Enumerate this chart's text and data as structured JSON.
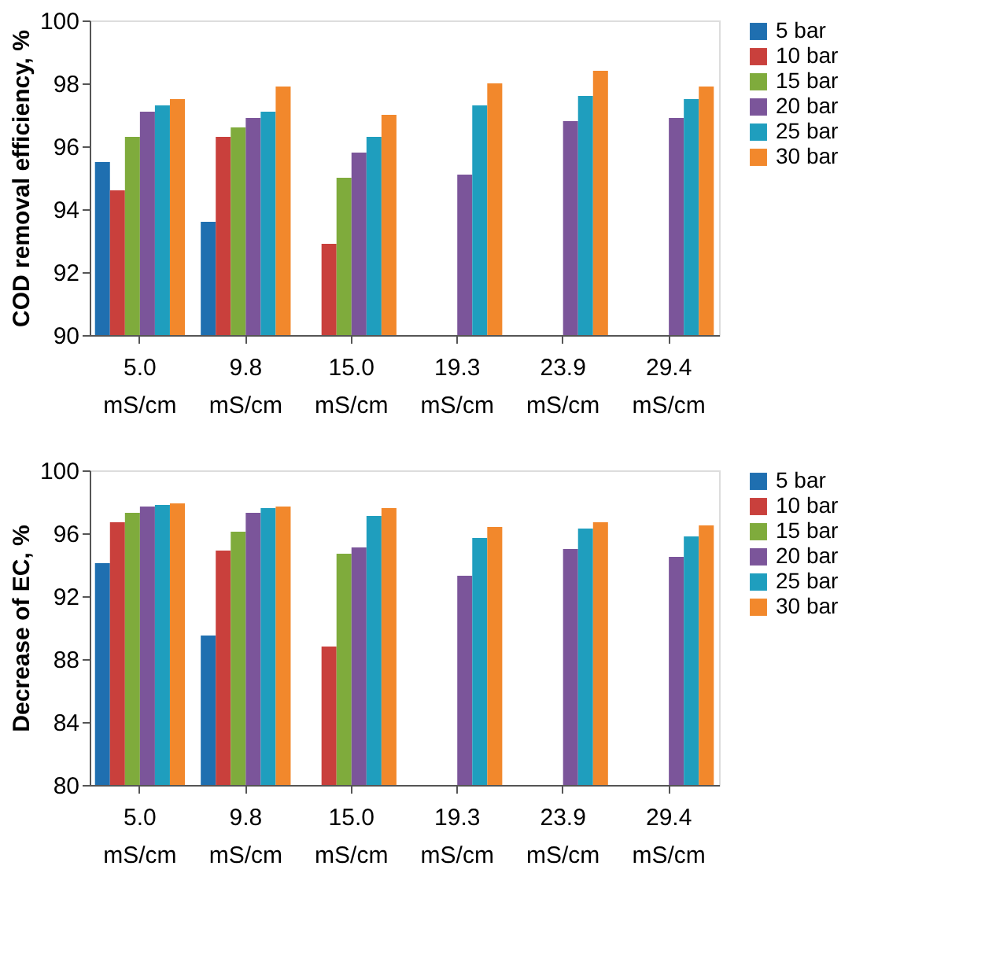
{
  "chart_data": [
    {
      "type": "bar",
      "ylabel": "COD removal efficiency, %",
      "categories": [
        "5.0 mS/cm",
        "9.8 mS/cm",
        "15.0 mS/cm",
        "19.3 mS/cm",
        "23.9 mS/cm",
        "29.4 mS/cm"
      ],
      "ylim": [
        90,
        100
      ],
      "yticks": [
        90,
        92,
        94,
        96,
        98,
        100
      ],
      "grid": false,
      "legend": "right",
      "series": [
        {
          "name": "5 bar",
          "color": "#1f6fb0",
          "values": [
            95.5,
            93.6,
            null,
            null,
            null,
            null
          ]
        },
        {
          "name": "10 bar",
          "color": "#c9403c",
          "values": [
            94.6,
            96.3,
            92.9,
            null,
            null,
            null
          ]
        },
        {
          "name": "15 bar",
          "color": "#7fab3c",
          "values": [
            96.3,
            96.6,
            95.0,
            null,
            null,
            null
          ]
        },
        {
          "name": "20 bar",
          "color": "#7b559a",
          "values": [
            97.1,
            96.9,
            95.8,
            95.1,
            96.8,
            96.9
          ]
        },
        {
          "name": "25 bar",
          "color": "#1f9ebe",
          "values": [
            97.3,
            97.1,
            96.3,
            97.3,
            97.6,
            97.5
          ]
        },
        {
          "name": "30 bar",
          "color": "#f2882c",
          "values": [
            97.5,
            97.9,
            97.0,
            98.0,
            98.4,
            97.9
          ]
        }
      ]
    },
    {
      "type": "bar",
      "ylabel": "Decrease of EC, %",
      "categories": [
        "5.0 mS/cm",
        "9.8 mS/cm",
        "15.0 mS/cm",
        "19.3 mS/cm",
        "23.9 mS/cm",
        "29.4 mS/cm"
      ],
      "ylim": [
        80,
        100
      ],
      "yticks": [
        80,
        84,
        88,
        92,
        96,
        100
      ],
      "grid": false,
      "legend": "right",
      "series": [
        {
          "name": "5 bar",
          "color": "#1f6fb0",
          "values": [
            94.1,
            89.5,
            null,
            null,
            null,
            null
          ]
        },
        {
          "name": "10 bar",
          "color": "#c9403c",
          "values": [
            96.7,
            94.9,
            88.8,
            null,
            null,
            null
          ]
        },
        {
          "name": "15 bar",
          "color": "#7fab3c",
          "values": [
            97.3,
            96.1,
            94.7,
            null,
            null,
            null
          ]
        },
        {
          "name": "20 bar",
          "color": "#7b559a",
          "values": [
            97.7,
            97.3,
            95.1,
            93.3,
            95.0,
            94.5
          ]
        },
        {
          "name": "25 bar",
          "color": "#1f9ebe",
          "values": [
            97.8,
            97.6,
            97.1,
            95.7,
            96.3,
            95.8
          ]
        },
        {
          "name": "30 bar",
          "color": "#f2882c",
          "values": [
            97.9,
            97.7,
            97.6,
            96.4,
            96.7,
            96.5
          ]
        }
      ]
    }
  ]
}
